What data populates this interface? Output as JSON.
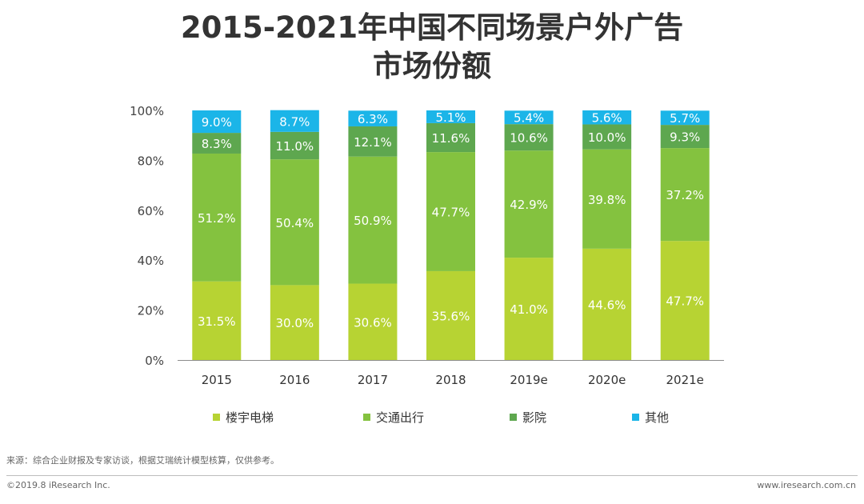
{
  "title": {
    "line1": "2015-2021年中国不同场景户外广告",
    "line2": "市场份额"
  },
  "chart_data": {
    "type": "bar",
    "stacked": true,
    "categories": [
      "2015",
      "2016",
      "2017",
      "2018",
      "2019e",
      "2020e",
      "2021e"
    ],
    "series": [
      {
        "name": "楼宇电梯",
        "color": "#b7d333",
        "values": [
          31.5,
          30.0,
          30.6,
          35.6,
          41.0,
          44.6,
          47.7
        ],
        "labels": [
          "31.5%",
          "30.0%",
          "30.6%",
          "35.6%",
          "41.0%",
          "44.6%",
          "47.7%"
        ]
      },
      {
        "name": "交通出行",
        "color": "#84c23f",
        "values": [
          51.2,
          50.4,
          50.9,
          47.7,
          42.9,
          39.8,
          37.2
        ],
        "labels": [
          "51.2%",
          "50.4%",
          "50.9%",
          "47.7%",
          "42.9%",
          "39.8%",
          "37.2%"
        ]
      },
      {
        "name": "影院",
        "color": "#5ea74f",
        "values": [
          8.3,
          11.0,
          12.1,
          11.6,
          10.6,
          10.0,
          9.3
        ],
        "labels": [
          "8.3%",
          "11.0%",
          "12.1%",
          "11.6%",
          "10.6%",
          "10.0%",
          "9.3%"
        ]
      },
      {
        "name": "其他",
        "color": "#1bb5e8",
        "values": [
          9.0,
          8.7,
          6.3,
          5.1,
          5.4,
          5.6,
          5.7
        ],
        "labels": [
          "9.0%",
          "8.7%",
          "6.3%",
          "5.1%",
          "5.4%",
          "5.6%",
          "5.7%"
        ]
      }
    ],
    "ylim": [
      0,
      100
    ],
    "yticks": [
      "0%",
      "20%",
      "40%",
      "60%",
      "80%",
      "100%"
    ],
    "legend_position": "bottom"
  },
  "source": "来源：综合企业财报及专家访谈，根据艾瑞统计模型核算，仅供参考。",
  "footer": {
    "copyright": "©2019.8 iResearch Inc.",
    "website": "www.iresearch.com.cn"
  }
}
